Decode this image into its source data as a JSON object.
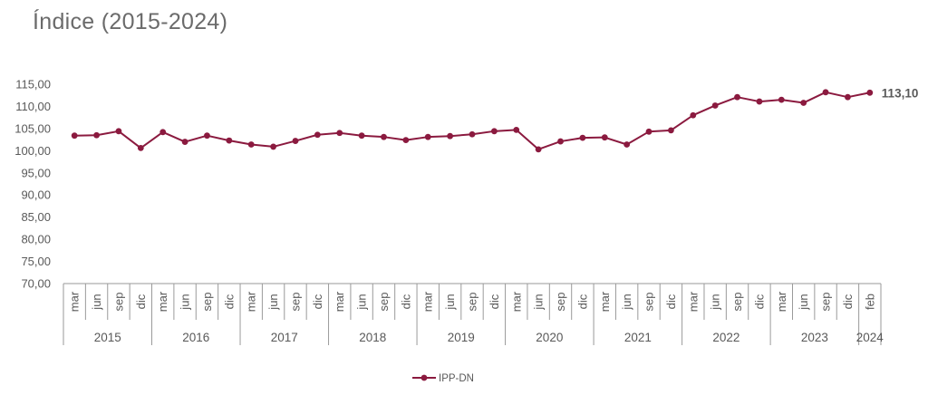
{
  "chart_data": {
    "type": "line",
    "title": "Índice (2015-2024)",
    "ylim": [
      70,
      115
    ],
    "yticks": [
      "70,00",
      "75,00",
      "80,00",
      "85,00",
      "90,00",
      "95,00",
      "100,00",
      "105,00",
      "110,00",
      "115,00"
    ],
    "ytick_values": [
      70,
      75,
      80,
      85,
      90,
      95,
      100,
      105,
      110,
      115
    ],
    "categories": [
      "mar",
      "jun",
      "sep",
      "dic",
      "mar",
      "jun",
      "sep",
      "dic",
      "mar",
      "jun",
      "sep",
      "dic",
      "mar",
      "jun",
      "sep",
      "dic",
      "mar",
      "jun",
      "sep",
      "dic",
      "mar",
      "jun",
      "sep",
      "dic",
      "mar",
      "jun",
      "sep",
      "dic",
      "mar",
      "jun",
      "sep",
      "dic",
      "mar",
      "jun",
      "sep",
      "dic",
      "feb"
    ],
    "years": [
      {
        "label": "2015",
        "count": 4
      },
      {
        "label": "2016",
        "count": 4
      },
      {
        "label": "2017",
        "count": 4
      },
      {
        "label": "2018",
        "count": 4
      },
      {
        "label": "2019",
        "count": 4
      },
      {
        "label": "2020",
        "count": 4
      },
      {
        "label": "2021",
        "count": 4
      },
      {
        "label": "2022",
        "count": 4
      },
      {
        "label": "2023",
        "count": 4
      },
      {
        "label": "2024",
        "count": 1
      }
    ],
    "series": [
      {
        "name": "IPP-DN",
        "color": "#8b1a3f",
        "values": [
          103.4,
          103.5,
          104.4,
          100.6,
          104.2,
          102.0,
          103.4,
          102.3,
          101.4,
          100.9,
          102.2,
          103.6,
          104.0,
          103.4,
          103.1,
          102.4,
          103.1,
          103.3,
          103.7,
          104.4,
          104.7,
          100.3,
          102.1,
          102.9,
          103.0,
          101.4,
          104.3,
          104.6,
          108.0,
          110.2,
          112.1,
          111.1,
          111.5,
          110.8,
          113.2,
          112.1,
          113.1
        ]
      }
    ],
    "last_value_label": "113,10",
    "legend": "bottom-center",
    "grid": false
  }
}
